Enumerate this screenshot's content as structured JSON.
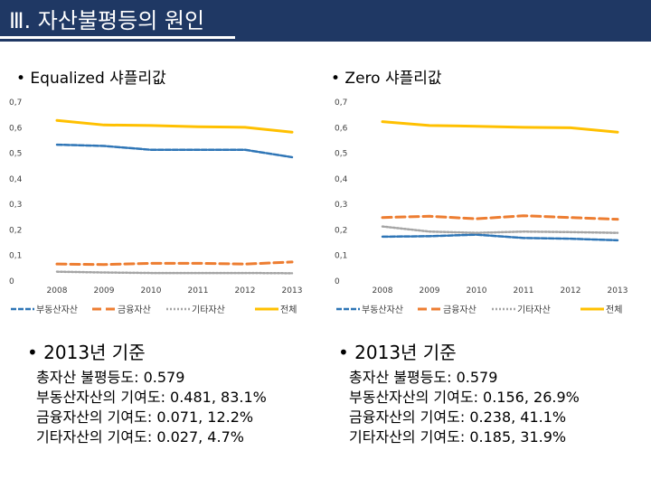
{
  "slide_title": "Ⅲ. 자산불평등의 원인",
  "colors": {
    "title_bar": "#1f3864",
    "series": [
      "#2e75b6",
      "#ed7d31",
      "#a5a5a5",
      "#ffc000"
    ]
  },
  "left": {
    "heading": "• Equalized 샤플리값",
    "summary_title": "• 2013년 기준",
    "summary_lines": [
      "총자산 불평등도: 0.579",
      "부동산자산의 기여도: 0.481, 83.1%",
      "금융자산의 기여도: 0.071, 12.2%",
      "기타자산의 기여도: 0.027, 4.7%"
    ]
  },
  "right": {
    "heading": "• Zero 샤플리값",
    "summary_title": "• 2013년 기준",
    "summary_lines": [
      "총자산 불평등도: 0.579",
      "부동산자산의 기여도: 0.156, 26.9%",
      "금융자산의 기여도: 0.238, 41.1%",
      "기타자산의 기여도: 0.185, 31.9%"
    ]
  },
  "chart_data": [
    {
      "type": "line",
      "title": "Equalized 샤플리값",
      "x": [
        "2008",
        "2009",
        "2010",
        "2011",
        "2012",
        "2013"
      ],
      "ylim": [
        0,
        0.7
      ],
      "yticks": [
        "0",
        "0,1",
        "0,2",
        "0,3",
        "0,4",
        "0,5",
        "0,6",
        "0,7"
      ],
      "grid": false,
      "legend": "bottom",
      "series": [
        {
          "name": "부동산자산",
          "values": [
            0.53,
            0.525,
            0.51,
            0.51,
            0.51,
            0.481
          ]
        },
        {
          "name": "금융자산",
          "values": [
            0.063,
            0.061,
            0.066,
            0.066,
            0.063,
            0.071
          ]
        },
        {
          "name": "기타자산",
          "values": [
            0.033,
            0.03,
            0.028,
            0.028,
            0.028,
            0.027
          ]
        },
        {
          "name": "전체",
          "values": [
            0.625,
            0.607,
            0.605,
            0.6,
            0.598,
            0.579
          ]
        }
      ]
    },
    {
      "type": "line",
      "title": "Zero 샤플리값",
      "x": [
        "2008",
        "2009",
        "2010",
        "2011",
        "2012",
        "2013"
      ],
      "ylim": [
        0,
        0.7
      ],
      "yticks": [
        "0",
        "0,1",
        "0,2",
        "0,3",
        "0,4",
        "0,5",
        "0,6",
        "0,7"
      ],
      "grid": false,
      "legend": "bottom",
      "series": [
        {
          "name": "부동산자산",
          "values": [
            0.17,
            0.172,
            0.178,
            0.165,
            0.162,
            0.156
          ]
        },
        {
          "name": "금융자산",
          "values": [
            0.245,
            0.25,
            0.24,
            0.252,
            0.245,
            0.238
          ]
        },
        {
          "name": "기타자산",
          "values": [
            0.21,
            0.19,
            0.185,
            0.19,
            0.188,
            0.185
          ]
        },
        {
          "name": "전체",
          "values": [
            0.62,
            0.605,
            0.602,
            0.598,
            0.596,
            0.579
          ]
        }
      ]
    }
  ]
}
